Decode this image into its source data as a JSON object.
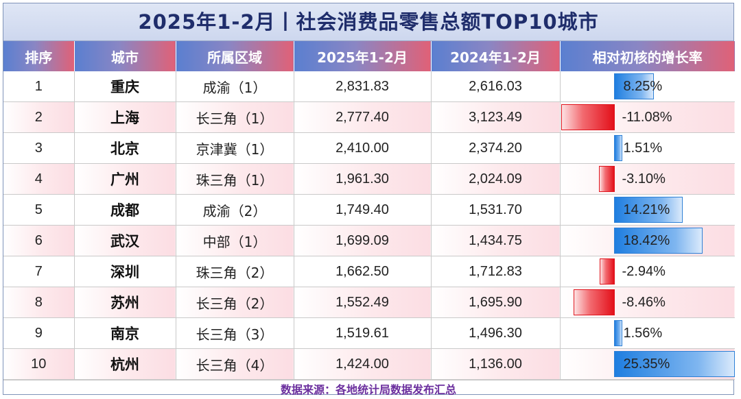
{
  "title": "2025年1-2月丨社会消费品零售总额TOP10城市",
  "headers": [
    "排序",
    "城市",
    "所属区域",
    "2025年1-2月",
    "2024年1-2月",
    "相对初核的增长率"
  ],
  "rows": [
    {
      "rank": "1",
      "city": "重庆",
      "region": "成渝（1）",
      "v2025": "2,831.83",
      "v2024": "2,616.03",
      "rate": "8.25%",
      "rate_value": 8.25
    },
    {
      "rank": "2",
      "city": "上海",
      "region": "长三角（1）",
      "v2025": "2,777.40",
      "v2024": "3,123.49",
      "rate": "-11.08%",
      "rate_value": -11.08
    },
    {
      "rank": "3",
      "city": "北京",
      "region": "京津冀（1）",
      "v2025": "2,410.00",
      "v2024": "2,374.20",
      "rate": "1.51%",
      "rate_value": 1.51
    },
    {
      "rank": "4",
      "city": "广州",
      "region": "珠三角（1）",
      "v2025": "1,961.30",
      "v2024": "2,024.09",
      "rate": "-3.10%",
      "rate_value": -3.1
    },
    {
      "rank": "5",
      "city": "成都",
      "region": "成渝（2）",
      "v2025": "1,749.40",
      "v2024": "1,531.70",
      "rate": "14.21%",
      "rate_value": 14.21
    },
    {
      "rank": "6",
      "city": "武汉",
      "region": "中部（1）",
      "v2025": "1,699.09",
      "v2024": "1,434.75",
      "rate": "18.42%",
      "rate_value": 18.42
    },
    {
      "rank": "7",
      "city": "深圳",
      "region": "珠三角（2）",
      "v2025": "1,662.50",
      "v2024": "1,712.83",
      "rate": "-2.94%",
      "rate_value": -2.94
    },
    {
      "rank": "8",
      "city": "苏州",
      "region": "长三角（2）",
      "v2025": "1,552.49",
      "v2024": "1,695.90",
      "rate": "-8.46%",
      "rate_value": -8.46
    },
    {
      "rank": "9",
      "city": "南京",
      "region": "长三角（3）",
      "v2025": "1,519.61",
      "v2024": "1,496.30",
      "rate": "1.56%",
      "rate_value": 1.56
    },
    {
      "rank": "10",
      "city": "杭州",
      "region": "长三角（4）",
      "v2025": "1,424.00",
      "v2024": "1,136.00",
      "rate": "25.35%",
      "rate_value": 25.35
    }
  ],
  "source": "数据来源：各地统计局数据发布汇总",
  "colors": {
    "positive_bar": "#1f7ee0",
    "negative_bar": "#e3101a",
    "title_text": "#1f2d6b",
    "source_text": "#6b2f9e"
  }
}
